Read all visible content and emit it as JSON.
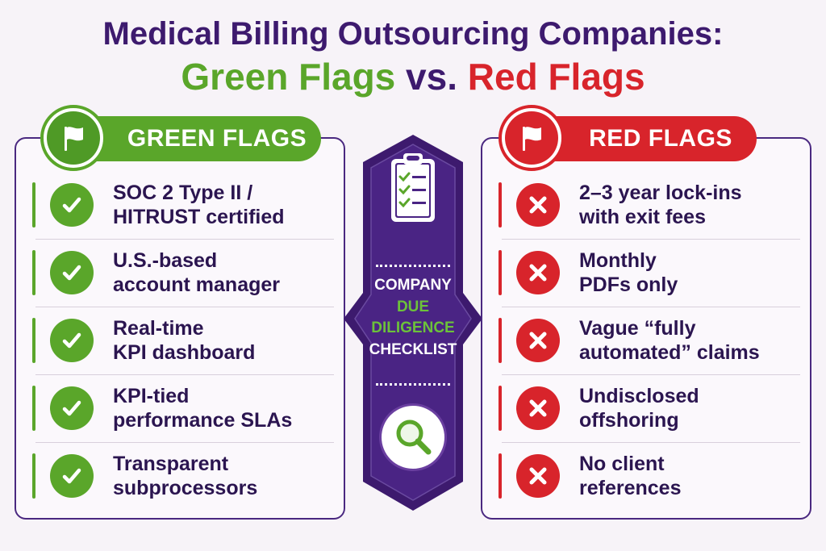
{
  "title": {
    "line1": "Medical Billing Outsourcing Companies:",
    "green": "Green Flags",
    "vs": "vs.",
    "red": "Red Flags"
  },
  "green_panel": {
    "header": "GREEN FLAGS",
    "icon": "flag-icon",
    "items": [
      {
        "line1": "SOC 2 Type II /",
        "line2": "HITRUST certified"
      },
      {
        "line1": "U.S.-based",
        "line2": "account manager"
      },
      {
        "line1": "Real-time",
        "line2": "KPI dashboard"
      },
      {
        "line1": "KPI-tied",
        "line2": "performance SLAs"
      },
      {
        "line1": "Transparent",
        "line2": "subprocessors"
      }
    ]
  },
  "red_panel": {
    "header": "RED FLAGS",
    "icon": "flag-icon",
    "items": [
      {
        "line1": "2–3 year lock-ins",
        "line2": "with exit fees"
      },
      {
        "line1": "Monthly",
        "line2": "PDFs only"
      },
      {
        "line1": "Vague “fully",
        "line2": "automated” claims"
      },
      {
        "line1": "Undisclosed",
        "line2": "offshoring"
      },
      {
        "line1": "No client",
        "line2": "references"
      }
    ]
  },
  "center": {
    "line1": "COMPANY",
    "line2": "DUE",
    "line3": "DILIGENCE",
    "line4": "CHECKLIST",
    "top_icon": "clipboard-checklist-icon",
    "bottom_icon": "magnifier-icon"
  },
  "colors": {
    "purple": "#3d1a6e",
    "green": "#5aa62a",
    "red": "#d8242b",
    "background": "#f7f3f8"
  }
}
